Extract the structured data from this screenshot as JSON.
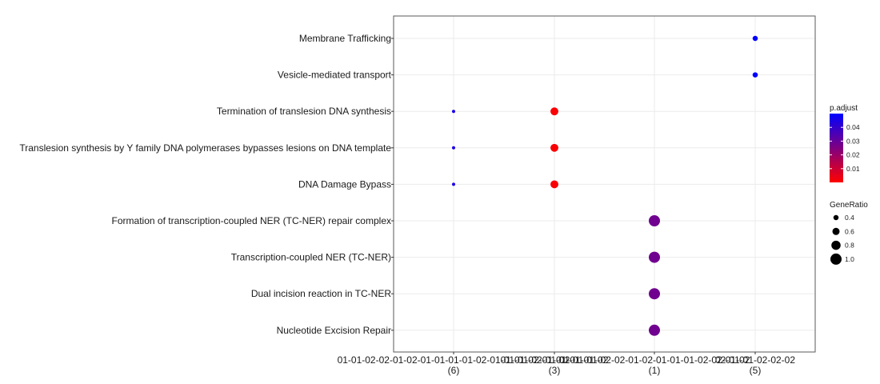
{
  "chart_data": {
    "type": "scatter",
    "title": "",
    "xlabel": "",
    "ylabel": "",
    "grid": true,
    "legend_placement": "right",
    "x_categories": [
      {
        "lines": [
          "01-01-02-02-01-02-01-01-01-01-02-01-01-01-02-01-02",
          "(6)"
        ]
      },
      {
        "lines": [
          "01-01-02-01-01-01-01-02",
          "(3)"
        ]
      },
      {
        "lines": [
          "01-01-01-02-02-01-02-01-01-01-02-02-01-02",
          "(1)"
        ]
      },
      {
        "lines": [
          "02-01-01-02-02-02",
          "(5)"
        ]
      }
    ],
    "y_categories": [
      "Membrane Trafficking",
      "Vesicle-mediated transport",
      "Termination of translesion DNA synthesis",
      "Translesion synthesis by Y family DNA polymerases bypasses lesions on DNA template",
      "DNA Damage Bypass",
      "Formation of transcription-coupled NER (TC-NER) repair complex",
      "Transcription-coupled NER (TC-NER)",
      "Dual incision reaction in TC-NER",
      "Nucleotide Excision Repair"
    ],
    "points": [
      {
        "x": 3,
        "y": "Membrane Trafficking",
        "gene_ratio": 0.4,
        "p_adjust": 0.05
      },
      {
        "x": 3,
        "y": "Vesicle-mediated transport",
        "gene_ratio": 0.4,
        "p_adjust": 0.05
      },
      {
        "x": 0,
        "y": "Termination of translesion DNA synthesis",
        "gene_ratio": 0.2,
        "p_adjust": 0.045
      },
      {
        "x": 1,
        "y": "Termination of translesion DNA synthesis",
        "gene_ratio": 0.67,
        "p_adjust": 0.001
      },
      {
        "x": 0,
        "y": "Translesion synthesis by Y family DNA polymerases bypasses lesions on DNA template",
        "gene_ratio": 0.2,
        "p_adjust": 0.045
      },
      {
        "x": 1,
        "y": "Translesion synthesis by Y family DNA polymerases bypasses lesions on DNA template",
        "gene_ratio": 0.67,
        "p_adjust": 0.001
      },
      {
        "x": 0,
        "y": "DNA Damage Bypass",
        "gene_ratio": 0.2,
        "p_adjust": 0.045
      },
      {
        "x": 1,
        "y": "DNA Damage Bypass",
        "gene_ratio": 0.67,
        "p_adjust": 0.001
      },
      {
        "x": 2,
        "y": "Formation of transcription-coupled NER (TC-NER) repair complex",
        "gene_ratio": 1.0,
        "p_adjust": 0.028
      },
      {
        "x": 2,
        "y": "Transcription-coupled NER (TC-NER)",
        "gene_ratio": 1.0,
        "p_adjust": 0.028
      },
      {
        "x": 2,
        "y": "Dual incision reaction in TC-NER",
        "gene_ratio": 1.0,
        "p_adjust": 0.028
      },
      {
        "x": 2,
        "y": "Nucleotide Excision Repair",
        "gene_ratio": 1.0,
        "p_adjust": 0.028
      }
    ],
    "color_legend": {
      "title": "p.adjust",
      "min": 0.0,
      "max": 0.05,
      "low_color": "#ff0000",
      "high_color": "#0000ff",
      "ticks": [
        "0.04",
        "0.03",
        "0.02",
        "0.01"
      ],
      "tick_values": [
        0.04,
        0.03,
        0.02,
        0.01
      ]
    },
    "size_legend": {
      "title": "GeneRatio",
      "labels": [
        "0.4",
        "0.6",
        "0.8",
        "1.0"
      ],
      "values": [
        0.4,
        0.6,
        0.8,
        1.0
      ]
    }
  }
}
